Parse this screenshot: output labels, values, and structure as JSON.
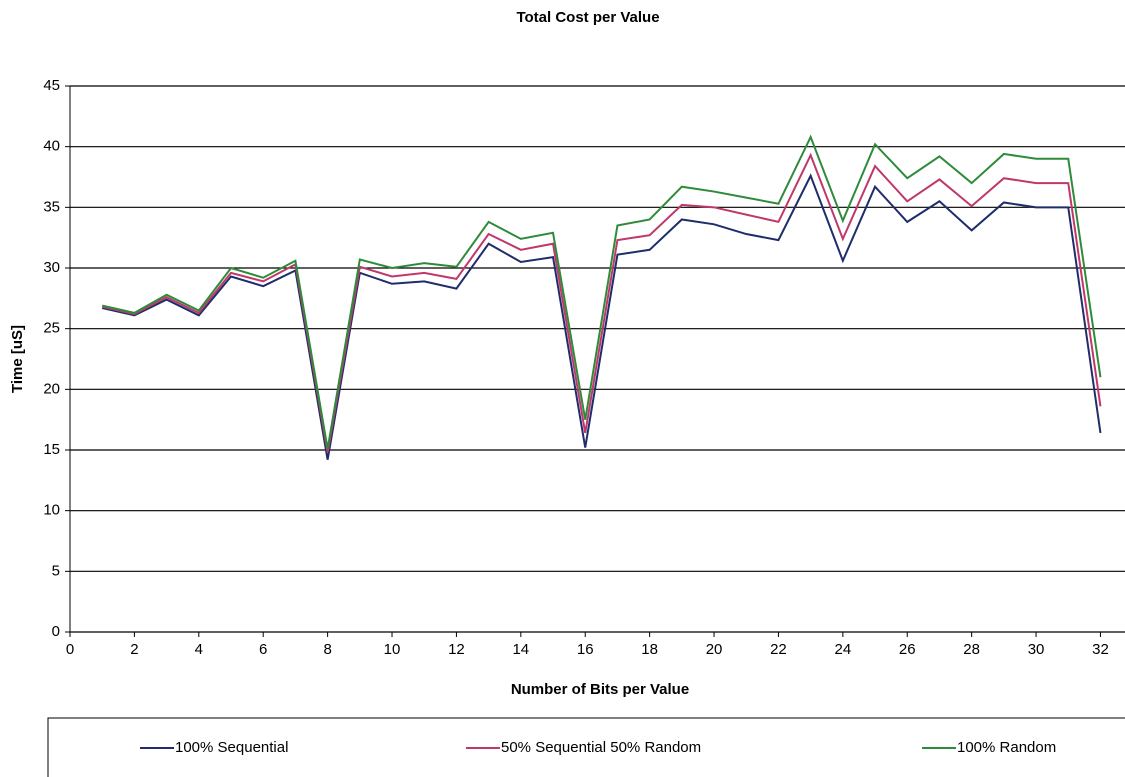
{
  "chart_data": {
    "type": "line",
    "title": "Total Cost per Value",
    "xlabel": "Number of Bits per Value",
    "ylabel": "Time [uS]",
    "x": [
      1,
      2,
      3,
      4,
      5,
      6,
      7,
      8,
      9,
      10,
      11,
      12,
      13,
      14,
      15,
      16,
      17,
      18,
      19,
      20,
      21,
      22,
      23,
      24,
      25,
      26,
      27,
      28,
      29,
      30,
      31,
      32
    ],
    "series": [
      {
        "name": "100% Sequential",
        "color": "#1f2d6b",
        "values": [
          26.7,
          26.1,
          27.4,
          26.1,
          29.3,
          28.5,
          29.8,
          14.2,
          29.6,
          28.7,
          28.9,
          28.3,
          32.0,
          30.5,
          30.9,
          15.2,
          31.1,
          31.5,
          34.0,
          33.6,
          32.8,
          32.3,
          37.6,
          30.6,
          36.7,
          33.8,
          35.5,
          33.1,
          35.4,
          35.0,
          35.0,
          16.4
        ]
      },
      {
        "name": "50% Sequential 50% Random",
        "color": "#c0386b",
        "values": [
          26.8,
          26.2,
          27.6,
          26.3,
          29.6,
          28.9,
          30.3,
          14.8,
          30.1,
          29.3,
          29.6,
          29.1,
          32.8,
          31.5,
          32.0,
          16.4,
          32.3,
          32.7,
          35.2,
          35.0,
          34.4,
          33.8,
          39.3,
          32.4,
          38.4,
          35.5,
          37.3,
          35.1,
          37.4,
          37.0,
          37.0,
          18.6
        ]
      },
      {
        "name": "100% Random",
        "color": "#2e8b3a",
        "values": [
          26.9,
          26.3,
          27.8,
          26.5,
          30.0,
          29.2,
          30.6,
          15.1,
          30.7,
          30.0,
          30.4,
          30.1,
          33.8,
          32.4,
          32.9,
          17.5,
          33.5,
          34.0,
          36.7,
          36.3,
          35.8,
          35.3,
          40.8,
          33.9,
          40.2,
          37.4,
          39.2,
          37.0,
          39.4,
          39.0,
          39.0,
          21.0
        ]
      }
    ],
    "xlim": [
      0,
      32.7
    ],
    "xticks": [
      0,
      2,
      4,
      6,
      8,
      10,
      12,
      14,
      16,
      18,
      20,
      22,
      24,
      26,
      28,
      30,
      32
    ],
    "ylim": [
      0,
      45
    ],
    "yticks": [
      0,
      5,
      10,
      15,
      20,
      25,
      30,
      35,
      40,
      45
    ],
    "grid": true,
    "legend": "bottom"
  }
}
